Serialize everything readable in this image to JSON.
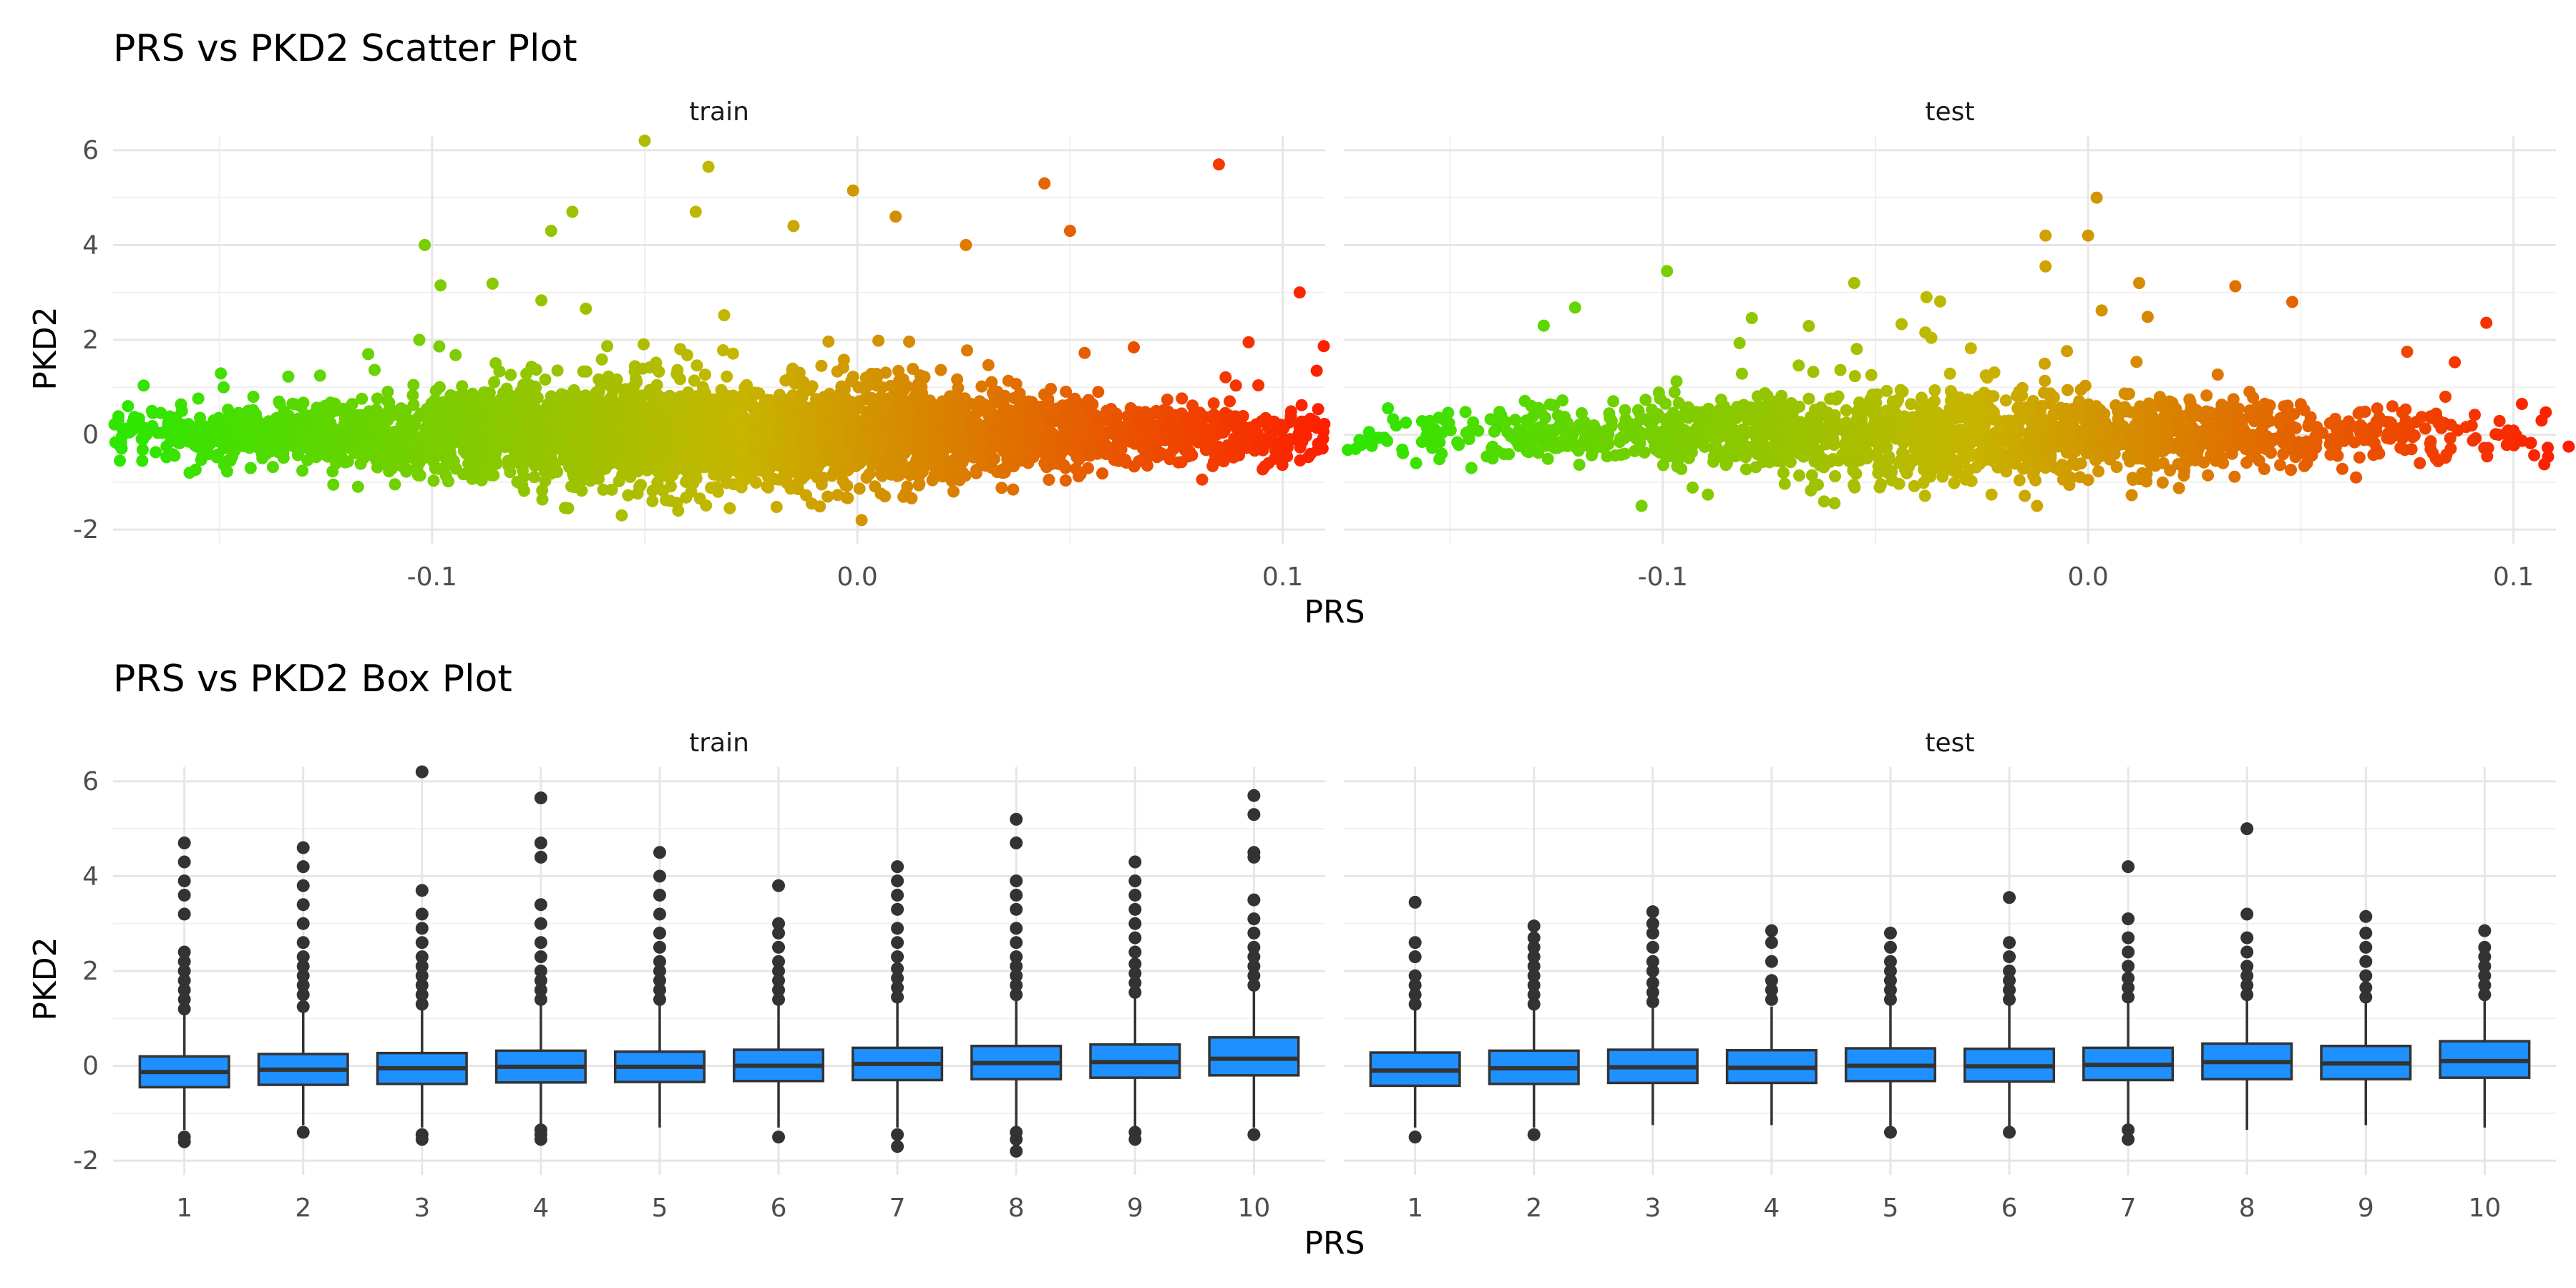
{
  "x_axis_label": "PRS",
  "y_axis_label": "PKD2",
  "facets": [
    "train",
    "test"
  ],
  "colors": {
    "low": "#2ee600",
    "mid": "#c7b500",
    "high": "#ff1a00",
    "box_fill": "#1e90ff",
    "box_line": "#333333"
  },
  "chart_data": [
    {
      "type": "scatter",
      "title": "PRS vs PKD2 Scatter Plot",
      "xlabel": "PRS",
      "ylabel": "PKD2",
      "xlim": [
        -0.175,
        0.11
      ],
      "ylim": [
        -2.3,
        6.3
      ],
      "x_ticks": [
        -0.1,
        0.0,
        0.1
      ],
      "x_tick_labels": [
        "-0.1",
        "0.0",
        "0.1"
      ],
      "y_ticks": [
        -2,
        0,
        2,
        4,
        6
      ],
      "y_tick_labels": [
        "-2",
        "0",
        "2",
        "4",
        "6"
      ],
      "color_by": "PRS",
      "grid": true,
      "panels": [
        {
          "name": "train",
          "point_count_approx": 6000,
          "core_x_range": [
            -0.13,
            0.07
          ],
          "core_y_sd": 0.55,
          "points": [
            [
              -0.168,
              -0.1
            ],
            [
              -0.16,
              -0.15
            ],
            [
              -0.157,
              -0.8
            ],
            [
              -0.149,
              1.0
            ],
            [
              -0.148,
              -0.55
            ],
            [
              -0.142,
              0.8
            ],
            [
              -0.14,
              -0.4
            ],
            [
              -0.136,
              0.7
            ],
            [
              -0.098,
              3.15
            ],
            [
              -0.103,
              2.0
            ],
            [
              -0.115,
              1.7
            ],
            [
              -0.072,
              4.3
            ],
            [
              -0.067,
              4.7
            ],
            [
              -0.05,
              6.2
            ],
            [
              -0.035,
              5.65
            ],
            [
              -0.038,
              4.7
            ],
            [
              -0.015,
              4.4
            ],
            [
              -0.001,
              5.15
            ],
            [
              0.009,
              4.6
            ],
            [
              0.044,
              5.3
            ],
            [
              0.05,
              4.3
            ],
            [
              0.085,
              5.7
            ],
            [
              0.104,
              3.0
            ],
            [
              0.108,
              1.35
            ],
            [
              0.104,
              0.15
            ],
            [
              0.092,
              1.95
            ],
            [
              0.096,
              0.35
            ],
            [
              0.001,
              -1.8
            ],
            [
              -0.03,
              -1.55
            ],
            [
              -0.068,
              -1.55
            ]
          ]
        },
        {
          "name": "test",
          "point_count_approx": 2500,
          "core_x_range": [
            -0.115,
            0.06
          ],
          "core_y_sd": 0.5,
          "points": [
            [
              -0.158,
              -0.6
            ],
            [
              -0.152,
              -0.4
            ],
            [
              -0.145,
              -0.7
            ],
            [
              -0.14,
              -0.5
            ],
            [
              -0.128,
              2.3
            ],
            [
              -0.099,
              3.45
            ],
            [
              -0.055,
              3.2
            ],
            [
              -0.038,
              2.9
            ],
            [
              -0.01,
              3.55
            ],
            [
              -0.01,
              4.2
            ],
            [
              0.0,
              4.2
            ],
            [
              0.002,
              5.0
            ],
            [
              0.012,
              3.2
            ],
            [
              0.048,
              2.8
            ],
            [
              0.075,
              1.75
            ],
            [
              0.084,
              0.8
            ],
            [
              0.102,
              0.65
            ],
            [
              0.113,
              -0.25
            ],
            [
              0.078,
              -0.6
            ],
            [
              0.063,
              -0.9
            ],
            [
              -0.012,
              -1.5
            ],
            [
              -0.105,
              -1.5
            ]
          ]
        }
      ]
    },
    {
      "type": "box",
      "title": "PRS vs PKD2 Box Plot",
      "xlabel": "PRS",
      "ylabel": "PKD2",
      "categories": [
        "1",
        "2",
        "3",
        "4",
        "5",
        "6",
        "7",
        "8",
        "9",
        "10"
      ],
      "ylim": [
        -2.3,
        6.3
      ],
      "y_ticks": [
        -2,
        0,
        2,
        4,
        6
      ],
      "y_tick_labels": [
        "-2",
        "0",
        "2",
        "4",
        "6"
      ],
      "grid": true,
      "panels": [
        {
          "name": "train",
          "boxes": [
            {
              "q1": -0.45,
              "median": -0.13,
              "q3": 0.2,
              "whisker_low": -1.35,
              "whisker_high": 1.1,
              "outliers_high": [
                1.2,
                1.4,
                1.6,
                1.8,
                2.0,
                2.2,
                2.4,
                3.2,
                3.6,
                3.9,
                4.3,
                4.7
              ],
              "outliers_low": [
                -1.5,
                -1.6
              ]
            },
            {
              "q1": -0.4,
              "median": -0.08,
              "q3": 0.25,
              "whisker_low": -1.25,
              "whisker_high": 1.15,
              "outliers_high": [
                1.25,
                1.5,
                1.7,
                1.9,
                2.1,
                2.3,
                2.6,
                3.0,
                3.4,
                3.8,
                4.2,
                4.6
              ],
              "outliers_low": [
                -1.4
              ]
            },
            {
              "q1": -0.38,
              "median": -0.05,
              "q3": 0.27,
              "whisker_low": -1.3,
              "whisker_high": 1.2,
              "outliers_high": [
                1.3,
                1.5,
                1.7,
                1.9,
                2.1,
                2.3,
                2.6,
                2.9,
                3.2,
                3.7,
                6.2
              ],
              "outliers_low": [
                -1.45,
                -1.55
              ]
            },
            {
              "q1": -0.35,
              "median": -0.02,
              "q3": 0.32,
              "whisker_low": -1.25,
              "whisker_high": 1.3,
              "outliers_high": [
                1.4,
                1.6,
                1.8,
                2.0,
                2.3,
                2.6,
                3.0,
                3.4,
                4.4,
                4.7,
                5.65
              ],
              "outliers_low": [
                -1.35,
                -1.45,
                -1.55
              ]
            },
            {
              "q1": -0.34,
              "median": -0.02,
              "q3": 0.3,
              "whisker_low": -1.3,
              "whisker_high": 1.3,
              "outliers_high": [
                1.4,
                1.6,
                1.8,
                2.0,
                2.2,
                2.5,
                2.8,
                3.2,
                3.6,
                4.0,
                4.5
              ],
              "outliers_low": []
            },
            {
              "q1": -0.32,
              "median": 0.0,
              "q3": 0.34,
              "whisker_low": -1.3,
              "whisker_high": 1.3,
              "outliers_high": [
                1.4,
                1.6,
                1.8,
                2.0,
                2.2,
                2.5,
                2.8,
                3.0,
                3.8
              ],
              "outliers_low": [
                -1.5
              ]
            },
            {
              "q1": -0.3,
              "median": 0.04,
              "q3": 0.38,
              "whisker_low": -1.3,
              "whisker_high": 1.35,
              "outliers_high": [
                1.45,
                1.65,
                1.85,
                2.05,
                2.3,
                2.6,
                2.9,
                3.3,
                3.6,
                3.9,
                4.2
              ],
              "outliers_low": [
                -1.45,
                -1.7
              ]
            },
            {
              "q1": -0.28,
              "median": 0.06,
              "q3": 0.42,
              "whisker_low": -1.3,
              "whisker_high": 1.4,
              "outliers_high": [
                1.5,
                1.7,
                1.9,
                2.1,
                2.3,
                2.6,
                2.9,
                3.3,
                3.6,
                3.9,
                4.7,
                5.2
              ],
              "outliers_low": [
                -1.4,
                -1.55,
                -1.8
              ]
            },
            {
              "q1": -0.25,
              "median": 0.08,
              "q3": 0.45,
              "whisker_low": -1.3,
              "whisker_high": 1.45,
              "outliers_high": [
                1.55,
                1.75,
                1.95,
                2.15,
                2.4,
                2.7,
                3.0,
                3.3,
                3.6,
                3.9,
                4.3
              ],
              "outliers_low": [
                -1.4,
                -1.55
              ]
            },
            {
              "q1": -0.2,
              "median": 0.15,
              "q3": 0.6,
              "whisker_low": -1.3,
              "whisker_high": 1.6,
              "outliers_high": [
                1.7,
                1.9,
                2.1,
                2.3,
                2.5,
                2.8,
                3.1,
                3.5,
                4.4,
                4.5,
                5.3,
                5.7
              ],
              "outliers_low": [
                -1.45
              ]
            }
          ]
        },
        {
          "name": "test",
          "boxes": [
            {
              "q1": -0.42,
              "median": -0.1,
              "q3": 0.28,
              "whisker_low": -1.3,
              "whisker_high": 1.2,
              "outliers_high": [
                1.3,
                1.5,
                1.7,
                1.9,
                2.3,
                2.6,
                3.45
              ],
              "outliers_low": [
                -1.5
              ]
            },
            {
              "q1": -0.38,
              "median": -0.05,
              "q3": 0.32,
              "whisker_low": -1.3,
              "whisker_high": 1.2,
              "outliers_high": [
                1.3,
                1.5,
                1.7,
                1.9,
                2.1,
                2.3,
                2.5,
                2.7,
                2.95
              ],
              "outliers_low": [
                -1.45
              ]
            },
            {
              "q1": -0.36,
              "median": -0.03,
              "q3": 0.34,
              "whisker_low": -1.25,
              "whisker_high": 1.25,
              "outliers_high": [
                1.35,
                1.55,
                1.75,
                2.0,
                2.2,
                2.5,
                2.8,
                3.0,
                3.25
              ],
              "outliers_low": []
            },
            {
              "q1": -0.36,
              "median": -0.04,
              "q3": 0.33,
              "whisker_low": -1.25,
              "whisker_high": 1.25,
              "outliers_high": [
                1.4,
                1.6,
                1.8,
                2.2,
                2.6,
                2.85
              ],
              "outliers_low": []
            },
            {
              "q1": -0.32,
              "median": 0.0,
              "q3": 0.37,
              "whisker_low": -1.3,
              "whisker_high": 1.3,
              "outliers_high": [
                1.4,
                1.6,
                1.8,
                2.0,
                2.2,
                2.5,
                2.8
              ],
              "outliers_low": [
                -1.4
              ]
            },
            {
              "q1": -0.33,
              "median": -0.01,
              "q3": 0.36,
              "whisker_low": -1.3,
              "whisker_high": 1.3,
              "outliers_high": [
                1.4,
                1.6,
                1.8,
                2.0,
                2.3,
                2.6,
                3.55
              ],
              "outliers_low": [
                -1.4
              ]
            },
            {
              "q1": -0.3,
              "median": 0.02,
              "q3": 0.38,
              "whisker_low": -1.25,
              "whisker_high": 1.35,
              "outliers_high": [
                1.45,
                1.65,
                1.85,
                2.1,
                2.4,
                2.7,
                3.1,
                4.2
              ],
              "outliers_low": [
                -1.35,
                -1.55
              ]
            },
            {
              "q1": -0.28,
              "median": 0.08,
              "q3": 0.47,
              "whisker_low": -1.35,
              "whisker_high": 1.4,
              "outliers_high": [
                1.5,
                1.7,
                1.9,
                2.1,
                2.4,
                2.7,
                3.2,
                5.0
              ],
              "outliers_low": []
            },
            {
              "q1": -0.28,
              "median": 0.05,
              "q3": 0.42,
              "whisker_low": -1.25,
              "whisker_high": 1.35,
              "outliers_high": [
                1.45,
                1.65,
                1.9,
                2.2,
                2.5,
                2.8,
                3.15
              ],
              "outliers_low": []
            },
            {
              "q1": -0.25,
              "median": 0.1,
              "q3": 0.52,
              "whisker_low": -1.3,
              "whisker_high": 1.4,
              "outliers_high": [
                1.5,
                1.7,
                1.9,
                2.1,
                2.3,
                2.5,
                2.85
              ],
              "outliers_low": []
            }
          ]
        }
      ]
    }
  ]
}
